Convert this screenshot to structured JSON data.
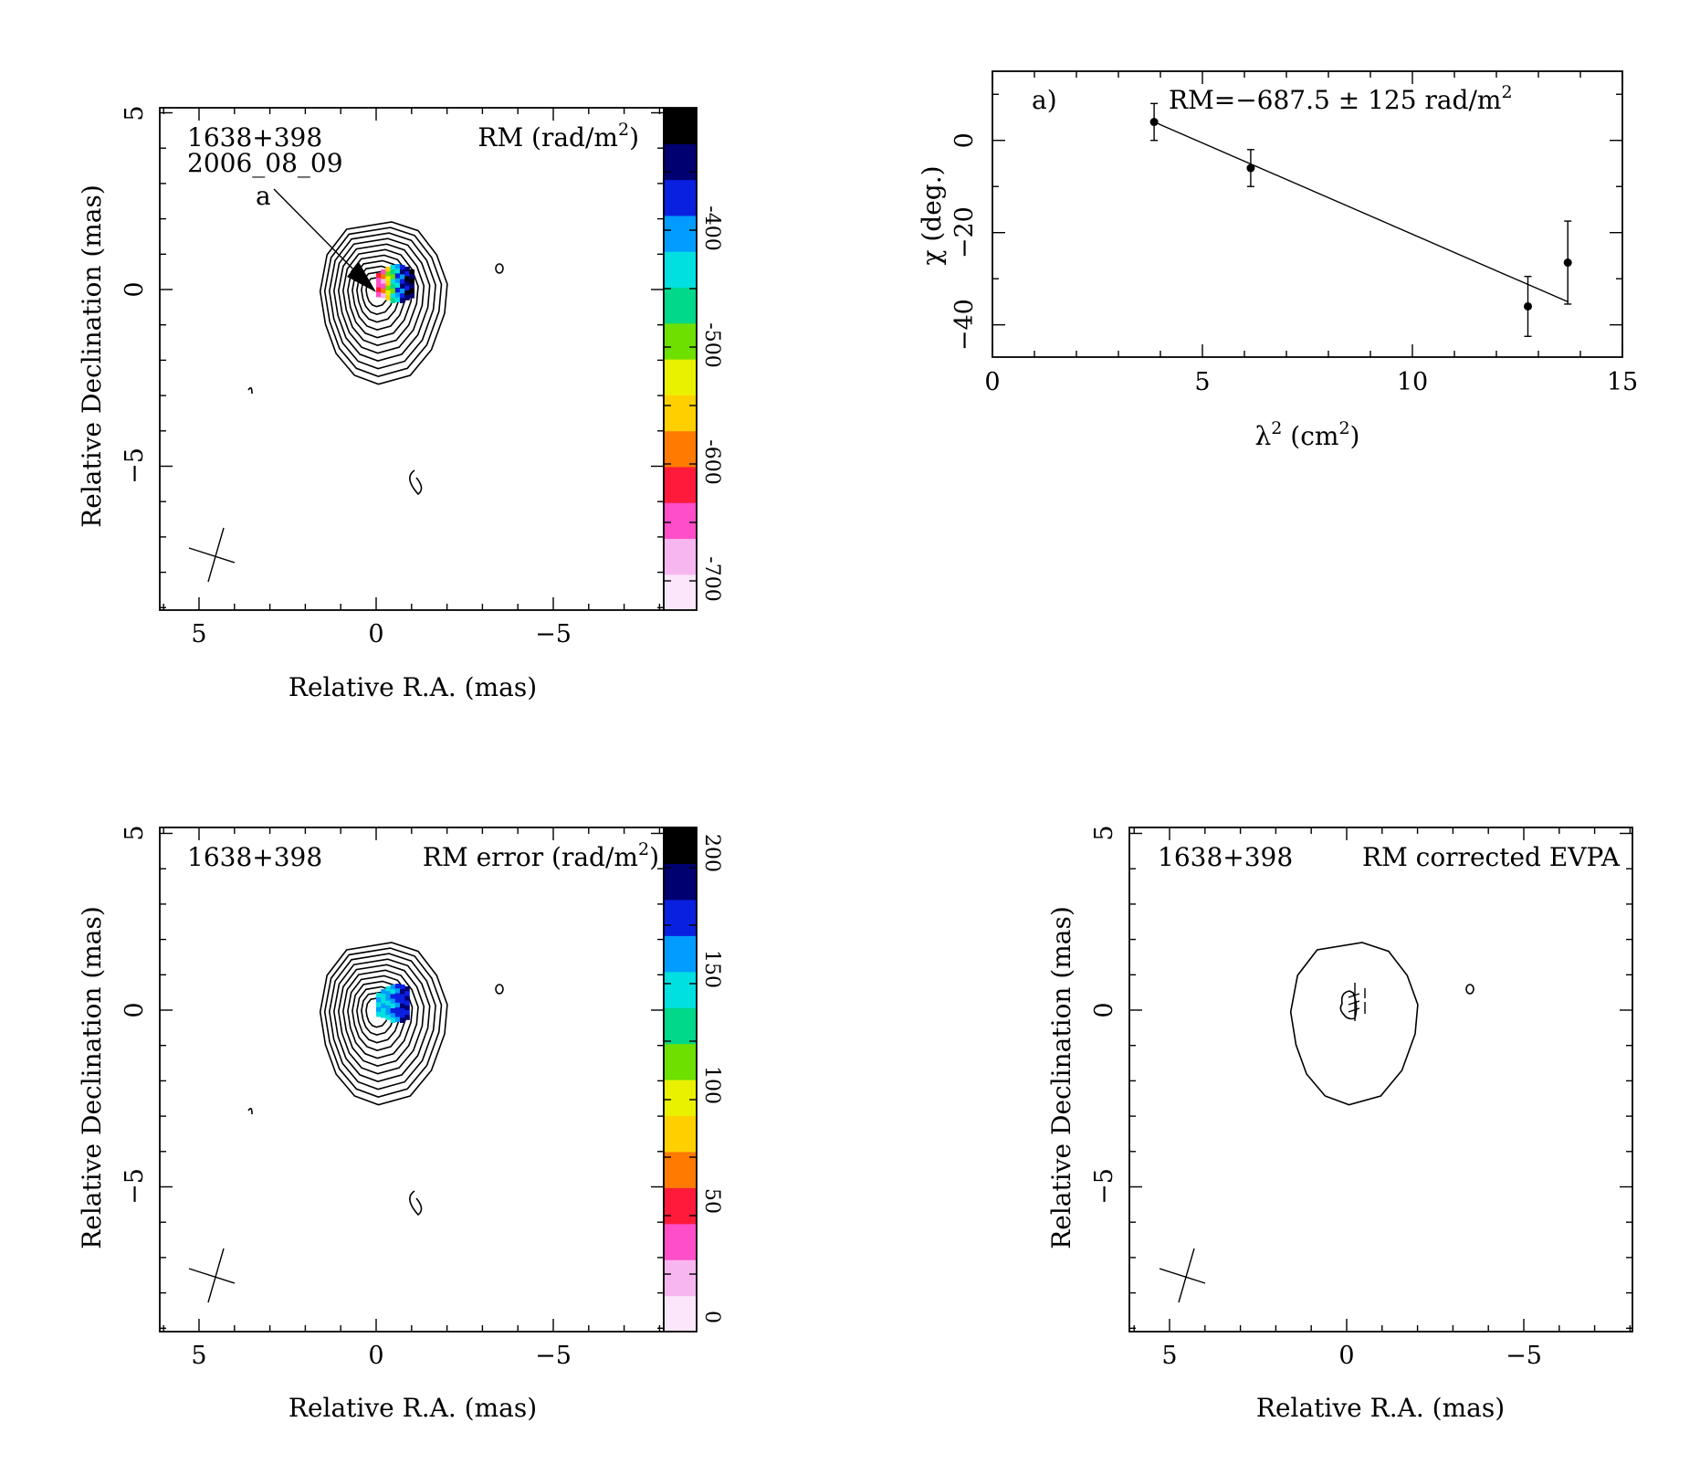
{
  "colors": {
    "ink": "#000000",
    "background": "#ffffff",
    "colormap": [
      "#fbe6fb",
      "#f8b6f0",
      "#ff4ec8",
      "#ff1a3a",
      "#ff7a00",
      "#ffd000",
      "#e9f000",
      "#6ee000",
      "#00d88a",
      "#00e0e0",
      "#009cff",
      "#0a20e0",
      "#000070",
      "#000000"
    ]
  },
  "panels": {
    "rm": {
      "source": "1638+398",
      "date": "2006_08_09",
      "title": "RM (rad/m",
      "title_sup": "2",
      "title_end": ")",
      "marker": "a",
      "colorbar_ticks": [
        "-400",
        "-500",
        "-600",
        "-700"
      ],
      "xlabel": "Relative R.A. (mas)",
      "ylabel": "Relative Declination (mas)"
    },
    "rm_error": {
      "source": "1638+398",
      "title": "RM error (rad/m",
      "title_sup": "2",
      "title_end": ")",
      "colorbar_ticks": [
        "0",
        "50",
        "100",
        "150",
        "200"
      ],
      "xlabel": "Relative R.A. (mas)",
      "ylabel": "Relative Declination (mas)"
    },
    "evpa": {
      "source": "1638+398",
      "title": "RM corrected EVPA",
      "xlabel": "Relative R.A. (mas)",
      "ylabel": "Relative Declination (mas)"
    },
    "fit": {
      "label": "a)",
      "annotation": "RM=−687.5 ± 125 rad/m",
      "annotation_sup": "2",
      "xlabel": "λ",
      "xlabel_sup1": "2",
      "xlabel_mid": " (cm",
      "xlabel_sup2": "2",
      "xlabel_end": ")",
      "ylabel": "χ (deg.)"
    }
  },
  "map_axes": {
    "x_ticks": [
      "5",
      "0",
      "−5"
    ],
    "y_ticks": [
      "5",
      "0",
      "−5"
    ],
    "xlim": [
      6.2,
      -8
    ],
    "ylim": [
      -9,
      5.2
    ]
  },
  "chart_data": [
    {
      "type": "scatter",
      "title": "",
      "xlabel": "λ² (cm²)",
      "ylabel": "χ (deg.)",
      "xlim": [
        0,
        15
      ],
      "ylim": [
        -47,
        15
      ],
      "x_ticks": [
        "0",
        "5",
        "10",
        "15"
      ],
      "y_ticks": [
        "0",
        "−20",
        "−40"
      ],
      "series": [
        {
          "x": [
            3.85,
            6.15,
            12.75,
            13.7
          ],
          "y": [
            4,
            -6,
            -36,
            -26.5
          ],
          "yerr": [
            4,
            4,
            6.5,
            9
          ]
        }
      ],
      "fit_line": {
        "x": [
          3.85,
          13.7
        ],
        "y": [
          4,
          -35
        ]
      },
      "annotation": "RM=−687.5 ± 125 rad/m²",
      "grid": false,
      "legend": "none"
    }
  ]
}
